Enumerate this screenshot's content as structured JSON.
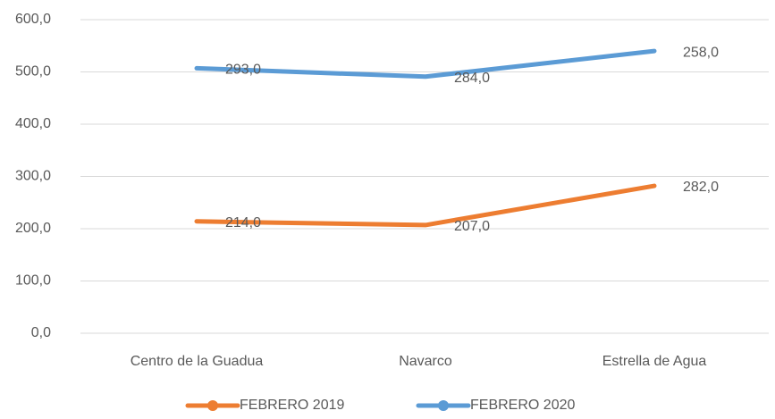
{
  "chart_data": {
    "type": "line",
    "stacked": true,
    "categories": [
      "Centro de la Guadua",
      "Navarco",
      "Estrella de Agua"
    ],
    "series": [
      {
        "name": "FEBRERO 2019",
        "color": "#ed7d31",
        "values": [
          214,
          207,
          282
        ],
        "value_labels": [
          "214,0",
          "207,0",
          "282,0"
        ]
      },
      {
        "name": "FEBRERO 2020",
        "color": "#5b9bd5",
        "values": [
          293,
          284,
          258
        ],
        "value_labels": [
          "293,0",
          "284,0",
          "258,0"
        ]
      }
    ],
    "ylim": [
      0,
      600
    ],
    "yticks": [
      {
        "value": 0,
        "label": "0,0"
      },
      {
        "value": 100,
        "label": "100,0"
      },
      {
        "value": 200,
        "label": "200,0"
      },
      {
        "value": 300,
        "label": "300,0"
      },
      {
        "value": 400,
        "label": "400,0"
      },
      {
        "value": 500,
        "label": "500,0"
      },
      {
        "value": 600,
        "label": "600,0"
      }
    ],
    "grid": true,
    "legend": "bottom"
  }
}
